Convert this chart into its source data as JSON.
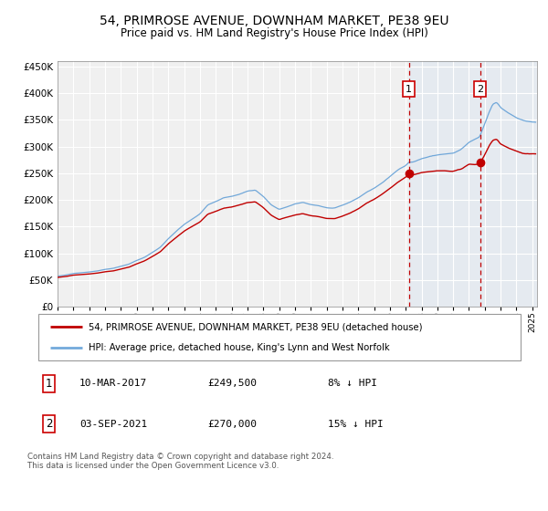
{
  "title": "54, PRIMROSE AVENUE, DOWNHAM MARKET, PE38 9EU",
  "subtitle": "Price paid vs. HM Land Registry's House Price Index (HPI)",
  "legend_line1": "54, PRIMROSE AVENUE, DOWNHAM MARKET, PE38 9EU (detached house)",
  "legend_line2": "HPI: Average price, detached house, King's Lynn and West Norfolk",
  "annotation1_label": "1",
  "annotation1_date": "10-MAR-2017",
  "annotation1_price": "£249,500",
  "annotation1_note": "8% ↓ HPI",
  "annotation1_year": 2017.19,
  "annotation1_value": 249500,
  "annotation2_label": "2",
  "annotation2_date": "03-SEP-2021",
  "annotation2_price": "£270,000",
  "annotation2_note": "15% ↓ HPI",
  "annotation2_year": 2021.67,
  "annotation2_value": 270000,
  "footer": "Contains HM Land Registry data © Crown copyright and database right 2024.\nThis data is licensed under the Open Government Licence v3.0.",
  "hpi_color": "#5b9bd5",
  "price_color": "#c00000",
  "dot_color": "#c00000",
  "vline_color": "#c00000",
  "shade_color": "#ddeeff",
  "chart_bg": "#f0f0f0",
  "background_color": "#ffffff",
  "grid_color": "#ffffff",
  "ylim": [
    0,
    460000
  ],
  "yticks": [
    0,
    50000,
    100000,
    150000,
    200000,
    250000,
    300000,
    350000,
    400000,
    450000
  ],
  "xlim_start": 1995.0,
  "xlim_end": 2025.3,
  "year_start": 1995,
  "year_end": 2025
}
